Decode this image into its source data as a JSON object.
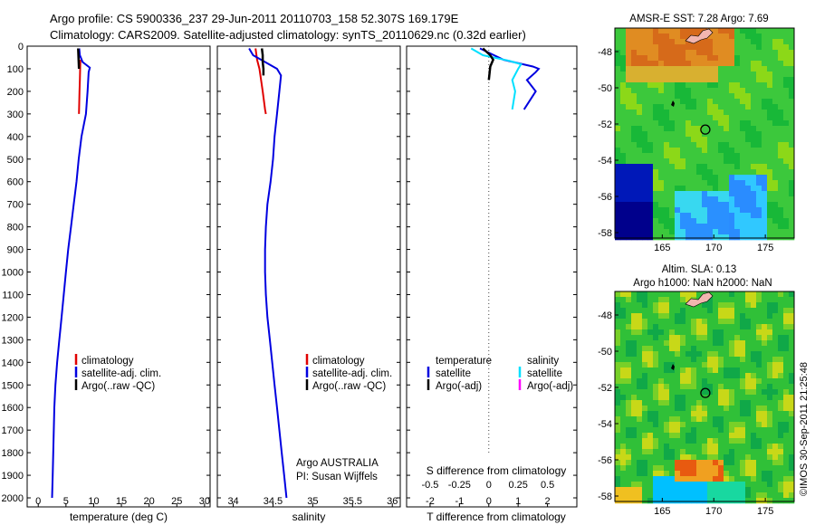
{
  "header": {
    "line1": "Argo profile: CS 5900336_237 29-Jun-2011 20110703_158 52.307S 169.179E",
    "line2": "Climatology: CARS2009. Satellite-adjusted climatology: synTS_20110629.nc (0.32d earlier)"
  },
  "footer": {
    "owner": "Argo AUSTRALIA",
    "pi": "PI: Susan Wijffels",
    "stamp": "©IMOS 30-Sep-2011 21:25:48"
  },
  "colors": {
    "climatology": "#e00000",
    "satellite": "#0000e0",
    "argo": "#000000",
    "satellite_salinity": "#00e0ff",
    "argo_salinity": "#ff00ff",
    "zero_line": "#444444"
  },
  "chart_data": [
    {
      "type": "line",
      "panel": "temperature",
      "xlabel": "temperature (deg C)",
      "xlim": [
        -2,
        31
      ],
      "xticks": [
        0,
        5,
        10,
        15,
        20,
        25,
        30
      ],
      "ylim": [
        2040,
        0
      ],
      "yticks": [
        0,
        100,
        200,
        300,
        400,
        500,
        600,
        700,
        800,
        900,
        1000,
        1100,
        1200,
        1300,
        1400,
        1500,
        1600,
        1700,
        1800,
        1900,
        2000
      ],
      "legend": [
        "climatology",
        "satellite-adj. clim.",
        "Argo(..raw -QC)"
      ],
      "series": [
        {
          "name": "climatology",
          "color_key": "climatology",
          "points": [
            [
              7.6,
              60
            ],
            [
              7.55,
              100
            ],
            [
              7.5,
              150
            ],
            [
              7.45,
              200
            ],
            [
              7.4,
              250
            ],
            [
              7.35,
              300
            ]
          ]
        },
        {
          "name": "satellite-adj. clim.",
          "color_key": "satellite",
          "points": [
            [
              7.4,
              10
            ],
            [
              7.5,
              40
            ],
            [
              8.0,
              70
            ],
            [
              9.3,
              95
            ],
            [
              9.1,
              115
            ],
            [
              8.9,
              200
            ],
            [
              8.6,
              300
            ],
            [
              7.8,
              400
            ],
            [
              7.3,
              500
            ],
            [
              6.9,
              600
            ],
            [
              6.4,
              700
            ],
            [
              5.9,
              800
            ],
            [
              5.4,
              900
            ],
            [
              5.0,
              1000
            ],
            [
              4.6,
              1100
            ],
            [
              4.2,
              1200
            ],
            [
              3.8,
              1300
            ],
            [
              3.4,
              1400
            ],
            [
              3.1,
              1500
            ],
            [
              2.9,
              1600
            ],
            [
              2.8,
              1700
            ],
            [
              2.7,
              1800
            ],
            [
              2.6,
              1900
            ],
            [
              2.5,
              2000
            ]
          ]
        },
        {
          "name": "Argo(..raw -QC)",
          "color_key": "argo",
          "points": [
            [
              7.2,
              10
            ],
            [
              7.25,
              40
            ],
            [
              7.3,
              70
            ],
            [
              7.35,
              100
            ]
          ]
        }
      ]
    },
    {
      "type": "line",
      "panel": "salinity",
      "xlabel": "salinity",
      "xlim": [
        33.8,
        36.1
      ],
      "xticks": [
        34,
        34.5,
        35,
        35.5,
        36
      ],
      "ylim": [
        2040,
        0
      ],
      "legend": [
        "climatology",
        "satellite-adj. clim.",
        "Argo(..raw -QC)"
      ],
      "series": [
        {
          "name": "climatology",
          "color_key": "climatology",
          "points": [
            [
              34.28,
              10
            ],
            [
              34.3,
              60
            ],
            [
              34.33,
              100
            ],
            [
              34.35,
              150
            ],
            [
              34.37,
              200
            ],
            [
              34.4,
              280
            ],
            [
              34.41,
              300
            ]
          ]
        },
        {
          "name": "satellite-adj. clim.",
          "color_key": "satellite",
          "points": [
            [
              34.2,
              10
            ],
            [
              34.25,
              40
            ],
            [
              34.4,
              70
            ],
            [
              34.55,
              100
            ],
            [
              34.6,
              130
            ],
            [
              34.58,
              200
            ],
            [
              34.55,
              300
            ],
            [
              34.52,
              400
            ],
            [
              34.5,
              500
            ],
            [
              34.47,
              600
            ],
            [
              34.43,
              700
            ],
            [
              34.41,
              800
            ],
            [
              34.4,
              900
            ],
            [
              34.4,
              1000
            ],
            [
              34.41,
              1100
            ],
            [
              34.43,
              1200
            ],
            [
              34.46,
              1300
            ],
            [
              34.49,
              1400
            ],
            [
              34.52,
              1500
            ],
            [
              34.55,
              1600
            ],
            [
              34.58,
              1700
            ],
            [
              34.61,
              1800
            ],
            [
              34.64,
              1900
            ],
            [
              34.67,
              2000
            ]
          ]
        },
        {
          "name": "Argo(..raw -QC)",
          "color_key": "argo",
          "points": [
            [
              34.36,
              10
            ],
            [
              34.37,
              40
            ],
            [
              34.37,
              70
            ],
            [
              34.38,
              100
            ],
            [
              34.38,
              130
            ]
          ]
        }
      ]
    },
    {
      "type": "line",
      "panel": "difference",
      "xlabel": "T difference from climatology",
      "xlabel_top": "S difference from climatology",
      "xlim": [
        -2.8,
        3.0
      ],
      "xticks": [
        -2,
        -1,
        0,
        1,
        2
      ],
      "xticks_top": [
        "-0.5",
        "-0.25",
        "0",
        "0.25",
        "0.5"
      ],
      "ylim": [
        2040,
        0
      ],
      "legend_headers": [
        "temperature",
        "salinity"
      ],
      "legend": [
        "satellite",
        "Argo(-adj)",
        "satellite",
        "Argo(-adj)"
      ],
      "series": [
        {
          "name": "temperature satellite",
          "color_key": "satellite",
          "points": [
            [
              -0.3,
              10
            ],
            [
              0.5,
              60
            ],
            [
              1.5,
              90
            ],
            [
              1.7,
              100
            ],
            [
              1.6,
              115
            ],
            [
              1.3,
              150
            ],
            [
              1.6,
              200
            ],
            [
              1.2,
              280
            ]
          ]
        },
        {
          "name": "salinity satellite",
          "color_key": "satellite_salinity",
          "points": [
            [
              -0.6,
              10
            ],
            [
              -0.2,
              40
            ],
            [
              0.7,
              65
            ],
            [
              1.1,
              80
            ],
            [
              1.0,
              100
            ],
            [
              0.8,
              150
            ],
            [
              0.9,
              200
            ],
            [
              0.8,
              280
            ]
          ]
        },
        {
          "name": "Argo(-adj)",
          "color_key": "argo",
          "points": [
            [
              -0.2,
              10
            ],
            [
              0.05,
              40
            ],
            [
              0.15,
              60
            ],
            [
              0.05,
              90
            ],
            [
              0.0,
              150
            ]
          ]
        }
      ]
    },
    {
      "type": "heatmap",
      "panel": "sst_map",
      "title": "AMSR-E SST: 7.28 Argo: 7.69",
      "xticks": [
        165,
        170,
        175
      ],
      "yticks": [
        -48,
        -50,
        -52,
        -54,
        -56,
        -58
      ],
      "marker": {
        "lon": 169.179,
        "lat": -52.307
      }
    },
    {
      "type": "heatmap",
      "panel": "sla_map",
      "title_line1": "Altim. SLA: 0.13",
      "title_line2": "Argo h1000: NaN h2000: NaN",
      "xticks": [
        165,
        170,
        175
      ],
      "yticks": [
        -48,
        -50,
        -52,
        -54,
        -56,
        -58
      ],
      "marker": {
        "lon": 169.179,
        "lat": -52.307
      }
    }
  ]
}
